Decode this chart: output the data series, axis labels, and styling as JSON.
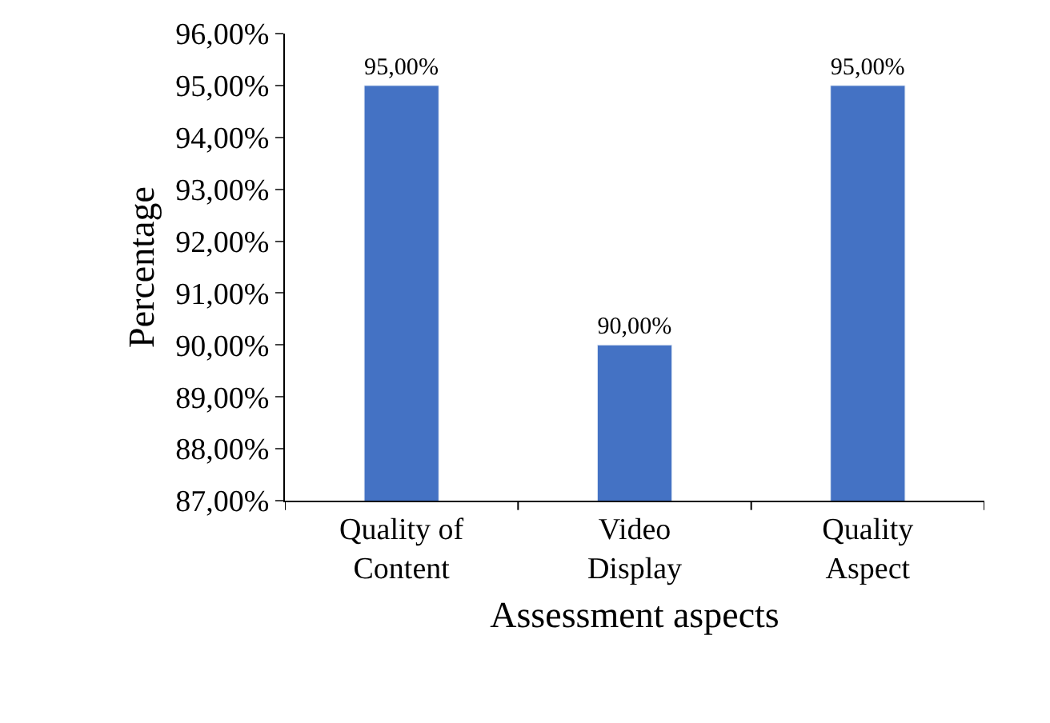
{
  "chart_data": {
    "type": "bar",
    "xlabel": "Assessment aspects",
    "ylabel": "Percentage",
    "categories": [
      "Quality of Content",
      "Video Display",
      "Quality Aspect"
    ],
    "values": [
      95,
      90,
      95
    ],
    "value_labels": [
      "95,00%",
      "90,00%",
      "95,00%"
    ],
    "color": "#4472c4",
    "ylim": [
      87,
      96
    ],
    "yticks": [
      {
        "value": 87,
        "label": "87,00%"
      },
      {
        "value": 88,
        "label": "88,00%"
      },
      {
        "value": 89,
        "label": "89,00%"
      },
      {
        "value": 90,
        "label": "90,00%"
      },
      {
        "value": 91,
        "label": "91,00%"
      },
      {
        "value": 92,
        "label": "92,00%"
      },
      {
        "value": 93,
        "label": "93,00%"
      },
      {
        "value": 94,
        "label": "94,00%"
      },
      {
        "value": 95,
        "label": "95,00%"
      },
      {
        "value": 96,
        "label": "96,00%"
      }
    ],
    "legend": false
  }
}
